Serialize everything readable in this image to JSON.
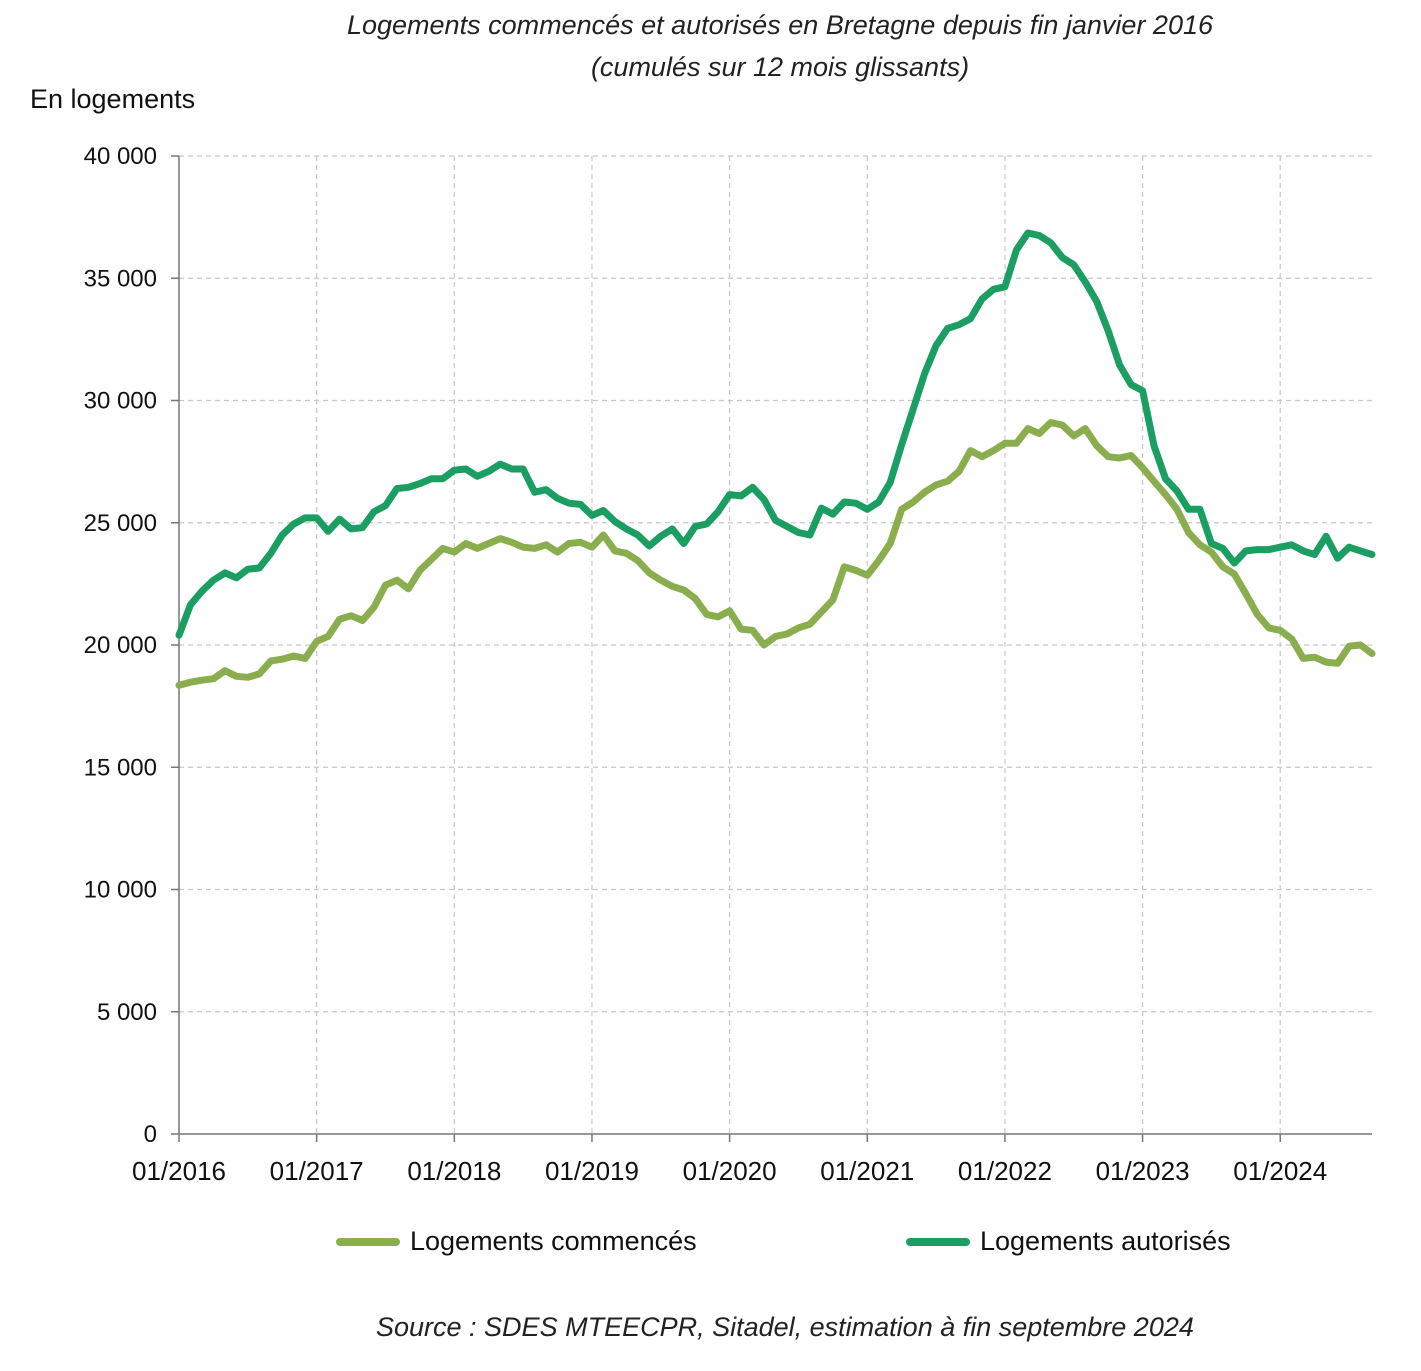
{
  "title_line1": "Logements commencés et autorisés en Bretagne depuis fin janvier 2016",
  "title_line2": "(cumulés sur 12 mois glissants)",
  "unit_label": "En logements",
  "source": "Source : SDES MTEECPR, Sitadel, estimation à fin septembre 2024",
  "chart_data": {
    "type": "line",
    "title": "Logements commencés et autorisés en Bretagne depuis fin janvier 2016 (cumulés sur 12 mois glissants)",
    "ylabel": "En logements",
    "ylim": [
      0,
      40000
    ],
    "yticks": [
      0,
      5000,
      10000,
      15000,
      20000,
      25000,
      30000,
      35000,
      40000
    ],
    "ytick_labels": [
      "0",
      "5 000",
      "10 000",
      "15 000",
      "20 000",
      "25 000",
      "30 000",
      "35 000",
      "40 000"
    ],
    "xlim": [
      "2016-01",
      "2024-09"
    ],
    "xtick_labels": [
      "01/2016",
      "01/2017",
      "01/2018",
      "01/2019",
      "01/2020",
      "01/2021",
      "01/2022",
      "01/2023",
      "01/2024"
    ],
    "grid": true,
    "legend_position": "bottom",
    "series": [
      {
        "name": "Logements commencés",
        "color": "#8aae4e",
        "x": [
          "2016-01",
          "2016-02",
          "2016-03",
          "2016-04",
          "2016-05",
          "2016-06",
          "2016-07",
          "2016-08",
          "2016-09",
          "2016-10",
          "2016-11",
          "2016-12",
          "2017-01",
          "2017-02",
          "2017-03",
          "2017-04",
          "2017-05",
          "2017-06",
          "2017-07",
          "2017-08",
          "2017-09",
          "2017-10",
          "2017-11",
          "2017-12",
          "2018-01",
          "2018-02",
          "2018-03",
          "2018-04",
          "2018-05",
          "2018-06",
          "2018-07",
          "2018-08",
          "2018-09",
          "2018-10",
          "2018-11",
          "2018-12",
          "2019-01",
          "2019-02",
          "2019-03",
          "2019-04",
          "2019-05",
          "2019-06",
          "2019-07",
          "2019-08",
          "2019-09",
          "2019-10",
          "2019-11",
          "2019-12",
          "2020-01",
          "2020-02",
          "2020-03",
          "2020-04",
          "2020-05",
          "2020-06",
          "2020-07",
          "2020-08",
          "2020-09",
          "2020-10",
          "2020-11",
          "2020-12",
          "2021-01",
          "2021-02",
          "2021-03",
          "2021-04",
          "2021-05",
          "2021-06",
          "2021-07",
          "2021-08",
          "2021-09",
          "2021-10",
          "2021-11",
          "2021-12",
          "2022-01",
          "2022-02",
          "2022-03",
          "2022-04",
          "2022-05",
          "2022-06",
          "2022-07",
          "2022-08",
          "2022-09",
          "2022-10",
          "2022-11",
          "2022-12",
          "2023-01",
          "2023-02",
          "2023-03",
          "2023-04",
          "2023-05",
          "2023-06",
          "2023-07",
          "2023-08",
          "2023-09",
          "2023-10",
          "2023-11",
          "2023-12",
          "2024-01",
          "2024-02",
          "2024-03",
          "2024-04",
          "2024-05",
          "2024-06",
          "2024-07",
          "2024-08",
          "2024-09"
        ],
        "values": [
          18350,
          18480,
          18560,
          18620,
          18950,
          18720,
          18680,
          18820,
          19350,
          19420,
          19550,
          19450,
          20150,
          20350,
          21050,
          21200,
          21000,
          21550,
          22450,
          22650,
          22300,
          23050,
          23500,
          23950,
          23800,
          24150,
          23950,
          24150,
          24350,
          24200,
          24000,
          23950,
          24100,
          23800,
          24150,
          24200,
          24000,
          24500,
          23850,
          23750,
          23450,
          22950,
          22650,
          22400,
          22250,
          21900,
          21250,
          21150,
          21400,
          20650,
          20600,
          20000,
          20350,
          20450,
          20700,
          20850,
          21350,
          21850,
          23200,
          23050,
          22850,
          23450,
          24150,
          25550,
          25850,
          26250,
          26550,
          26700,
          27100,
          27950,
          27700,
          27950,
          28250,
          28250,
          28850,
          28650,
          29100,
          29000,
          28550,
          28850,
          28150,
          27700,
          27650,
          27750,
          27250,
          26700,
          26150,
          25550,
          24600,
          24100,
          23800,
          23200,
          22900,
          22100,
          21250,
          20700,
          20600,
          20250,
          19450,
          19500,
          19300,
          19250,
          19950,
          20000,
          19650
        ]
      },
      {
        "name": "Logements autorisés",
        "color": "#1b9e62",
        "x": [
          "2016-01",
          "2016-02",
          "2016-03",
          "2016-04",
          "2016-05",
          "2016-06",
          "2016-07",
          "2016-08",
          "2016-09",
          "2016-10",
          "2016-11",
          "2016-12",
          "2017-01",
          "2017-02",
          "2017-03",
          "2017-04",
          "2017-05",
          "2017-06",
          "2017-07",
          "2017-08",
          "2017-09",
          "2017-10",
          "2017-11",
          "2017-12",
          "2018-01",
          "2018-02",
          "2018-03",
          "2018-04",
          "2018-05",
          "2018-06",
          "2018-07",
          "2018-08",
          "2018-09",
          "2018-10",
          "2018-11",
          "2018-12",
          "2019-01",
          "2019-02",
          "2019-03",
          "2019-04",
          "2019-05",
          "2019-06",
          "2019-07",
          "2019-08",
          "2019-09",
          "2019-10",
          "2019-11",
          "2019-12",
          "2020-01",
          "2020-02",
          "2020-03",
          "2020-04",
          "2020-05",
          "2020-06",
          "2020-07",
          "2020-08",
          "2020-09",
          "2020-10",
          "2020-11",
          "2020-12",
          "2021-01",
          "2021-02",
          "2021-03",
          "2021-04",
          "2021-05",
          "2021-06",
          "2021-07",
          "2021-08",
          "2021-09",
          "2021-10",
          "2021-11",
          "2021-12",
          "2022-01",
          "2022-02",
          "2022-03",
          "2022-04",
          "2022-05",
          "2022-06",
          "2022-07",
          "2022-08",
          "2022-09",
          "2022-10",
          "2022-11",
          "2022-12",
          "2023-01",
          "2023-02",
          "2023-03",
          "2023-04",
          "2023-05",
          "2023-06",
          "2023-07",
          "2023-08",
          "2023-09",
          "2023-10",
          "2023-11",
          "2023-12",
          "2024-01",
          "2024-02",
          "2024-03",
          "2024-04",
          "2024-05",
          "2024-06",
          "2024-07",
          "2024-08",
          "2024-09"
        ],
        "values": [
          20400,
          21650,
          22200,
          22650,
          22950,
          22750,
          23100,
          23150,
          23750,
          24500,
          24950,
          25200,
          25200,
          24650,
          25150,
          24750,
          24800,
          25450,
          25700,
          26400,
          26450,
          26600,
          26800,
          26800,
          27150,
          27200,
          26900,
          27100,
          27400,
          27200,
          27200,
          26250,
          26350,
          26000,
          25800,
          25750,
          25300,
          25500,
          25050,
          24750,
          24500,
          24050,
          24450,
          24750,
          24150,
          24850,
          24950,
          25450,
          26150,
          26100,
          26450,
          25950,
          25100,
          24850,
          24600,
          24500,
          25600,
          25350,
          25850,
          25800,
          25550,
          25850,
          26650,
          28200,
          29650,
          31100,
          32250,
          32950,
          33100,
          33350,
          34150,
          34550,
          34650,
          36150,
          36850,
          36750,
          36450,
          35850,
          35550,
          34850,
          34050,
          32850,
          31450,
          30650,
          30400,
          28150,
          26800,
          26300,
          25550,
          25550,
          24150,
          23950,
          23350,
          23850,
          23900,
          23900,
          24000,
          24100,
          23850,
          23700,
          24450,
          23550,
          24000,
          23850,
          23700
        ]
      }
    ]
  }
}
